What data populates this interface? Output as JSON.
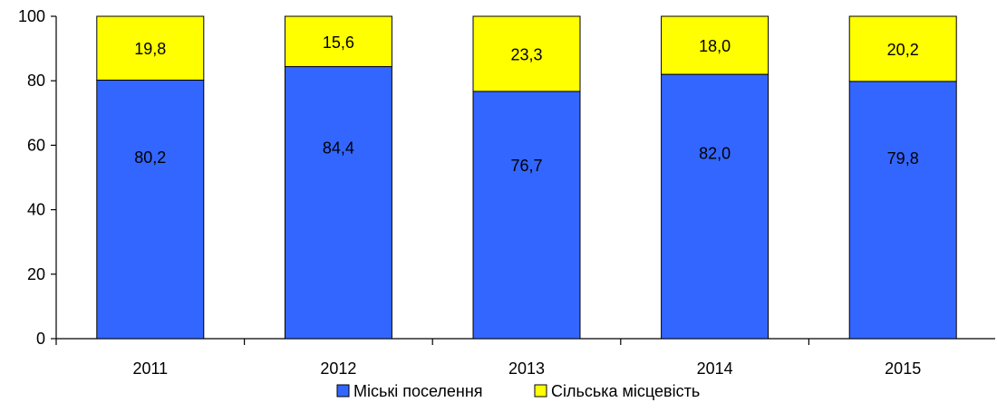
{
  "chart_data": {
    "type": "bar",
    "stacked": true,
    "categories": [
      "2011",
      "2012",
      "2013",
      "2014",
      "2015"
    ],
    "series": [
      {
        "name": "Міські поселення",
        "values": [
          80.2,
          84.4,
          76.7,
          82.0,
          79.8
        ],
        "labels": [
          "80,2",
          "84,4",
          "76,7",
          "82,0",
          "79,8"
        ],
        "color": "#3366FF"
      },
      {
        "name": "Сільська місцевість",
        "values": [
          19.8,
          15.6,
          23.3,
          18.0,
          20.2
        ],
        "labels": [
          "19,8",
          "15,6",
          "23,3",
          "18,0",
          "20,2"
        ],
        "color": "#FFFF00"
      }
    ],
    "ylim": [
      0,
      100
    ],
    "yticks": [
      0,
      20,
      40,
      60,
      80,
      100
    ],
    "grid": false,
    "legend": "bottom-center"
  }
}
